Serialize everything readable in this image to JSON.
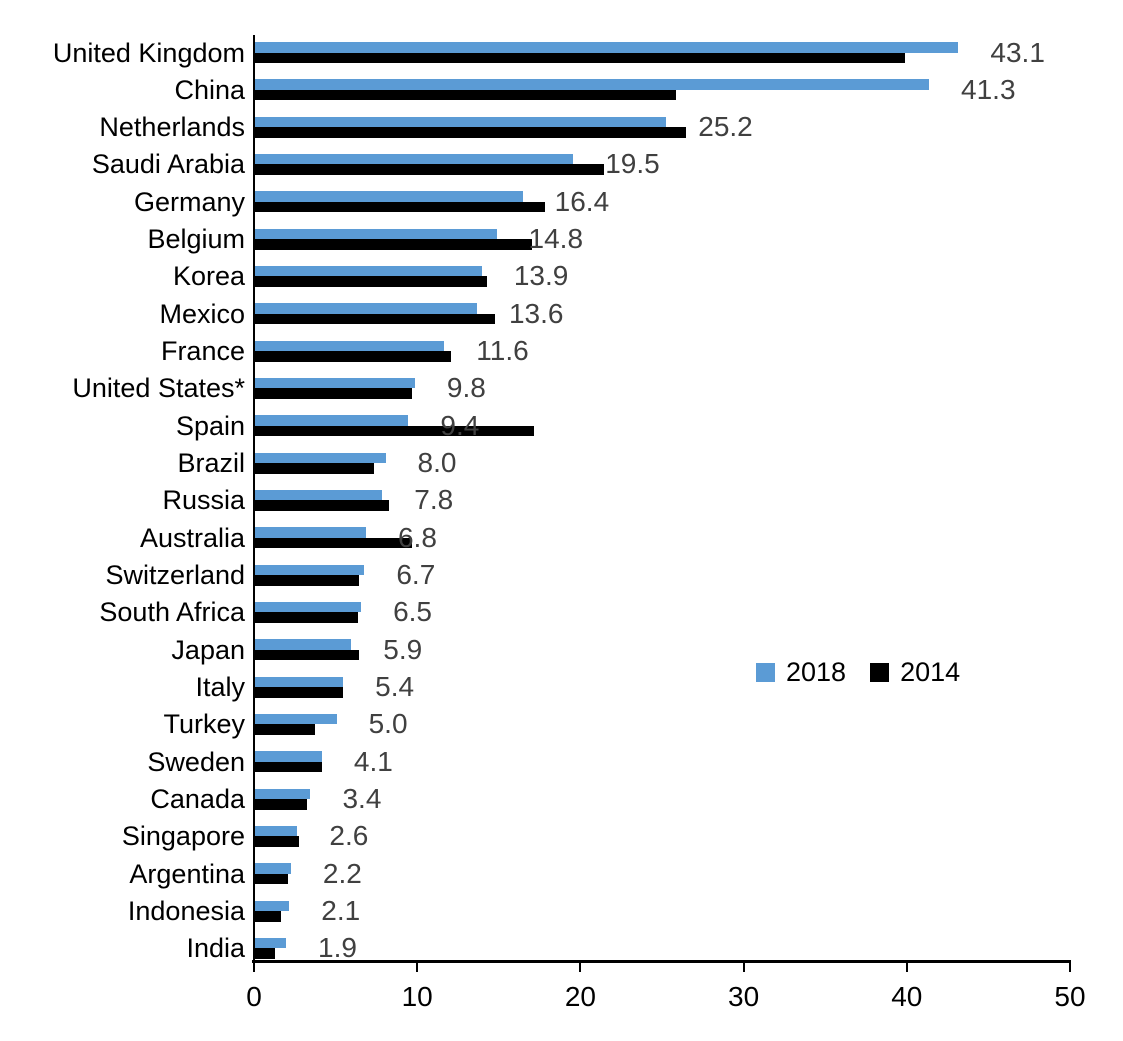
{
  "chart_data": {
    "type": "bar",
    "orientation": "horizontal",
    "title": "",
    "xlabel": "",
    "ylabel": "",
    "xlim": [
      0,
      50
    ],
    "x_ticks": [
      "0",
      "10",
      "20",
      "30",
      "40",
      "50"
    ],
    "grid": false,
    "legend_position": "middle-right",
    "categories": [
      "United Kingdom",
      "China",
      "Netherlands",
      "Saudi Arabia",
      "Germany",
      "Belgium",
      "Korea",
      "Mexico",
      "France",
      "United States*",
      "Spain",
      "Brazil",
      "Russia",
      "Australia",
      "Switzerland",
      "South Africa",
      "Japan",
      "Italy",
      "Turkey",
      "Sweden",
      "Canada",
      "Singapore",
      "Argentina",
      "Indonesia",
      "India"
    ],
    "series": [
      {
        "name": "2018",
        "color": "#5B9BD5",
        "values": [
          43.1,
          41.3,
          25.2,
          19.5,
          16.4,
          14.8,
          13.9,
          13.6,
          11.6,
          9.8,
          9.4,
          8.0,
          7.8,
          6.8,
          6.7,
          6.5,
          5.9,
          5.4,
          5.0,
          4.1,
          3.4,
          2.6,
          2.2,
          2.1,
          1.9
        ],
        "data_labels": [
          "43.1",
          "41.3",
          "25.2",
          "19.5",
          "16.4",
          "14.8",
          "13.9",
          "13.6",
          "11.6",
          "9.8",
          "9.4",
          "8.0",
          "7.8",
          "6.8",
          "6.7",
          "6.5",
          "5.9",
          "5.4",
          "5.0",
          "4.1",
          "3.4",
          "2.6",
          "2.2",
          "2.1",
          "1.9"
        ]
      },
      {
        "name": "2014",
        "color": "#000000",
        "values": [
          39.8,
          25.8,
          26.4,
          21.4,
          17.8,
          17.0,
          14.2,
          14.7,
          12.0,
          9.6,
          17.1,
          7.3,
          8.2,
          9.6,
          6.4,
          6.3,
          6.4,
          5.4,
          3.7,
          4.1,
          3.2,
          2.7,
          2.0,
          1.6,
          1.2
        ],
        "data_labels": []
      }
    ],
    "colors": {
      "axis": "#000000",
      "category_label": "#000000",
      "value_label": "#404040",
      "tick_label": "#000000",
      "background": "#ffffff"
    }
  }
}
